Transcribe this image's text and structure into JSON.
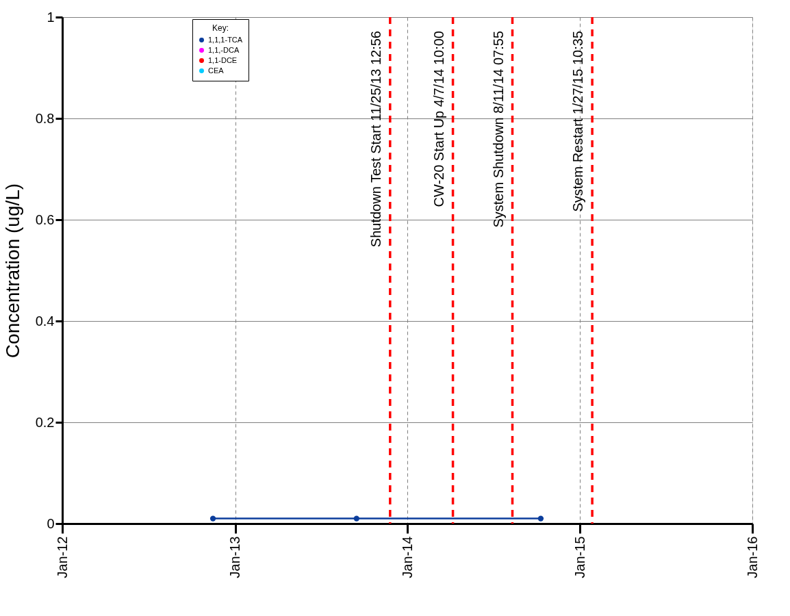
{
  "chart_data": {
    "type": "line",
    "ylabel": "Concentration (ug/L)",
    "legend_title": "Key:",
    "x": [
      "2012-11-15",
      "2013-09-15",
      "2014-10-10"
    ],
    "series": [
      {
        "name": "1,1,1-TCA",
        "color": "#0b3d9c",
        "values": [
          0.01,
          0.01,
          0.01
        ]
      },
      {
        "name": "1,1,-DCA",
        "color": "#ff00ff",
        "values": [
          null,
          null,
          null
        ]
      },
      {
        "name": "1,1-DCE",
        "color": "#ff0000",
        "values": [
          null,
          null,
          null
        ]
      },
      {
        "name": "CEA",
        "color": "#00ccff",
        "values": [
          null,
          null,
          null
        ]
      }
    ],
    "xlim": [
      "2012-01-01",
      "2016-01-01"
    ],
    "xticks": [
      {
        "value": "2012-01-01",
        "label": "Jan-12"
      },
      {
        "value": "2013-01-01",
        "label": "Jan-13"
      },
      {
        "value": "2014-01-01",
        "label": "Jan-14"
      },
      {
        "value": "2015-01-01",
        "label": "Jan-15"
      },
      {
        "value": "2016-01-01",
        "label": "Jan-16"
      }
    ],
    "ylim": [
      0,
      1
    ],
    "yticks": [
      0,
      0.2,
      0.4,
      0.6,
      0.8,
      1
    ],
    "ref_lines": [
      {
        "axis": "x",
        "value": "2013-11-25",
        "label": "Shutdown Test Start 11/25/13 12:56",
        "color": "#ff0000",
        "line_style": "dashed"
      },
      {
        "axis": "x",
        "value": "2014-04-07",
        "label": "CW-20 Start Up 4/7/14 10:00",
        "color": "#ff0000",
        "line_style": "dashed"
      },
      {
        "axis": "x",
        "value": "2014-08-11",
        "label": "System Shutdown 8/11/14 07:55",
        "color": "#ff0000",
        "line_style": "dashed"
      },
      {
        "axis": "x",
        "value": "2015-01-27",
        "label": "System Restart 1/27/15 10:35",
        "color": "#ff0000",
        "line_style": "dashed"
      }
    ],
    "grid": true,
    "legend": "top left",
    "marker": "circle",
    "line_style": "solid"
  }
}
